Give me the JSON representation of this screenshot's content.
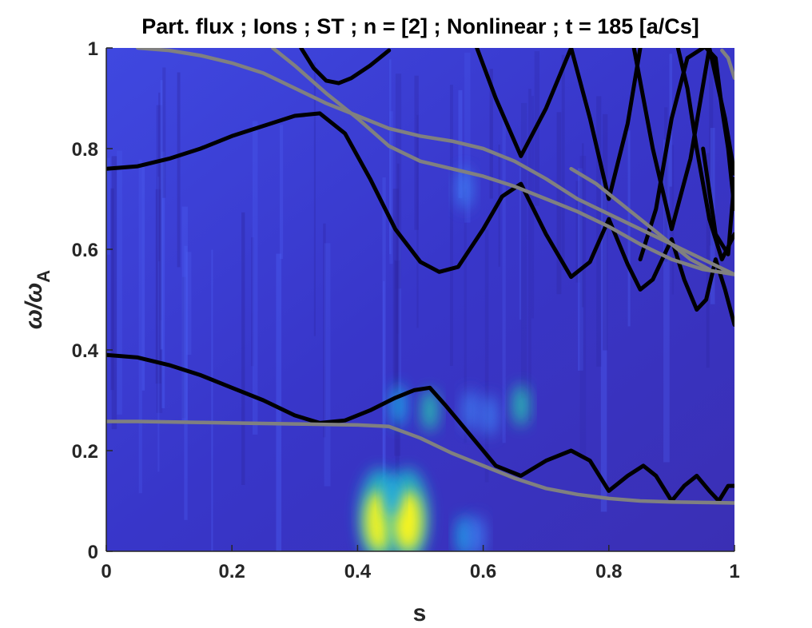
{
  "chart_data": {
    "type": "heatmap",
    "title": "Part. flux ; Ions ; ST ; n = [2] ; Nonlinear ; t = 185 [a/Cs]",
    "xlabel": "s",
    "ylabel": {
      "main": "ω/ω",
      "sub": "A"
    },
    "xlim": [
      0,
      1
    ],
    "ylim": [
      0,
      1
    ],
    "xticks": [
      0,
      0.2,
      0.4,
      0.6,
      0.8,
      1
    ],
    "xtick_labels": [
      "0",
      "0.2",
      "0.4",
      "0.6",
      "0.8",
      "1"
    ],
    "yticks": [
      0,
      0.2,
      0.4,
      0.6,
      0.8,
      1
    ],
    "ytick_labels": [
      "0",
      "0.2",
      "0.4",
      "0.6",
      "0.8",
      "1"
    ],
    "colormap": "parula",
    "background_color": "#3a33c8",
    "hotspots": [
      {
        "s": 0.435,
        "w": 0.05,
        "intensity": 1.0
      },
      {
        "s": 0.48,
        "w": 0.05,
        "intensity": 1.0
      },
      {
        "s": 0.455,
        "w": 0.11,
        "intensity": 0.55
      },
      {
        "s": 0.465,
        "w": 0.29,
        "intensity": 0.55
      },
      {
        "s": 0.515,
        "w": 0.28,
        "intensity": 0.7
      },
      {
        "s": 0.66,
        "w": 0.29,
        "intensity": 0.7
      },
      {
        "s": 0.57,
        "w": 0.03,
        "intensity": 0.5
      },
      {
        "s": 0.59,
        "w": 0.03,
        "intensity": 0.45
      },
      {
        "s": 0.57,
        "w": 0.72,
        "intensity": 0.35
      },
      {
        "s": 0.58,
        "w": 0.28,
        "intensity": 0.35
      },
      {
        "s": 0.61,
        "w": 0.27,
        "intensity": 0.35
      }
    ],
    "series": [
      {
        "color": "#000000",
        "x": [
          0,
          0.05,
          0.1,
          0.15,
          0.2,
          0.25,
          0.3,
          0.34,
          0.38,
          0.42,
          0.46,
          0.5,
          0.53,
          0.56,
          0.6,
          0.63,
          0.66,
          0.7,
          0.74,
          0.77,
          0.8,
          0.83,
          0.85,
          0.87,
          0.9,
          0.92,
          0.94,
          0.955,
          0.97,
          0.985,
          1
        ],
        "y": [
          0.76,
          0.765,
          0.78,
          0.8,
          0.825,
          0.845,
          0.865,
          0.87,
          0.83,
          0.74,
          0.64,
          0.575,
          0.555,
          0.565,
          0.64,
          0.705,
          0.73,
          0.63,
          0.545,
          0.575,
          0.66,
          0.57,
          0.52,
          0.54,
          0.62,
          0.54,
          0.48,
          0.5,
          0.58,
          0.52,
          0.45
        ]
      },
      {
        "color": "#000000",
        "x": [
          0,
          0.05,
          0.1,
          0.15,
          0.2,
          0.25,
          0.3,
          0.34,
          0.38,
          0.42,
          0.46,
          0.49,
          0.515,
          0.54,
          0.58,
          0.62,
          0.66,
          0.7,
          0.74,
          0.77,
          0.8,
          0.83,
          0.855,
          0.875,
          0.9,
          0.92,
          0.94,
          0.96,
          0.975,
          0.99,
          1
        ],
        "y": [
          0.39,
          0.385,
          0.37,
          0.35,
          0.325,
          0.3,
          0.27,
          0.255,
          0.26,
          0.28,
          0.305,
          0.32,
          0.325,
          0.29,
          0.23,
          0.17,
          0.15,
          0.18,
          0.2,
          0.18,
          0.12,
          0.15,
          0.17,
          0.15,
          0.1,
          0.13,
          0.15,
          0.12,
          0.1,
          0.13,
          0.13
        ]
      },
      {
        "color": "#000000",
        "x": [
          0.31,
          0.33,
          0.35,
          0.37,
          0.39,
          0.42,
          0.45
        ],
        "y": [
          1.0,
          0.96,
          0.935,
          0.93,
          0.94,
          0.965,
          0.995
        ]
      },
      {
        "color": "#000000",
        "x": [
          0.59,
          0.62,
          0.66,
          0.7,
          0.74,
          0.77,
          0.8,
          0.83,
          0.85
        ],
        "y": [
          1.0,
          0.9,
          0.785,
          0.88,
          1.0,
          0.86,
          0.7,
          0.85,
          1.0
        ]
      },
      {
        "color": "#000000",
        "x": [
          0.84,
          0.87,
          0.9,
          0.93,
          0.96,
          0.985,
          1
        ],
        "y": [
          1.0,
          0.8,
          0.64,
          0.78,
          1.0,
          0.86,
          0.75
        ]
      },
      {
        "color": "#000000",
        "x": [
          0.85,
          0.875,
          0.9,
          0.925,
          0.95
        ],
        "y": [
          0.58,
          0.68,
          0.86,
          0.98,
          1.0
        ]
      },
      {
        "color": "#000000",
        "x": [
          0.95,
          0.97,
          0.99,
          1
        ],
        "y": [
          0.8,
          0.63,
          0.59,
          0.74
        ]
      },
      {
        "color": "#000000",
        "x": [
          0.955,
          0.97,
          0.98,
          0.99,
          1
        ],
        "y": [
          1.0,
          0.98,
          0.88,
          0.8,
          0.68
        ]
      },
      {
        "color": "#000000",
        "x": [
          0.91,
          0.925,
          0.94,
          0.96,
          0.98,
          1
        ],
        "y": [
          1.0,
          0.92,
          0.8,
          0.66,
          0.58,
          0.63
        ]
      },
      {
        "color": "#808080",
        "x": [
          0.05,
          0.1,
          0.15,
          0.2,
          0.25,
          0.3,
          0.35,
          0.4,
          0.45,
          0.5,
          0.55,
          0.6,
          0.65,
          0.7,
          0.75,
          0.8,
          0.85,
          0.9,
          0.95,
          1
        ],
        "y": [
          1.0,
          0.995,
          0.985,
          0.97,
          0.95,
          0.92,
          0.89,
          0.865,
          0.84,
          0.825,
          0.815,
          0.8,
          0.775,
          0.74,
          0.7,
          0.67,
          0.64,
          0.61,
          0.58,
          0.55
        ]
      },
      {
        "color": "#808080",
        "x": [
          0.265,
          0.3,
          0.35,
          0.4,
          0.45,
          0.5,
          0.55,
          0.6,
          0.65,
          0.7,
          0.75,
          0.8,
          0.85,
          0.9,
          0.95,
          1
        ],
        "y": [
          1.0,
          0.965,
          0.91,
          0.86,
          0.805,
          0.775,
          0.76,
          0.745,
          0.725,
          0.7,
          0.675,
          0.645,
          0.61,
          0.58,
          0.56,
          0.55
        ]
      },
      {
        "color": "#808080",
        "x": [
          0.74,
          0.78,
          0.82,
          0.86,
          0.9,
          0.93,
          0.96
        ],
        "y": [
          0.76,
          0.73,
          0.69,
          0.65,
          0.61,
          0.58,
          0.56
        ]
      },
      {
        "color": "#808080",
        "x": [
          0.98,
          0.99,
          1
        ],
        "y": [
          0.995,
          0.98,
          0.94
        ]
      },
      {
        "color": "#808080",
        "x": [
          0,
          0.05,
          0.1,
          0.15,
          0.2,
          0.25,
          0.3,
          0.35,
          0.4,
          0.45,
          0.5,
          0.55,
          0.6,
          0.65,
          0.7,
          0.75,
          0.8,
          0.85,
          0.9,
          0.95,
          1
        ],
        "y": [
          0.258,
          0.258,
          0.257,
          0.256,
          0.255,
          0.254,
          0.253,
          0.252,
          0.251,
          0.248,
          0.225,
          0.195,
          0.17,
          0.145,
          0.125,
          0.113,
          0.105,
          0.1,
          0.098,
          0.097,
          0.096
        ]
      }
    ]
  }
}
